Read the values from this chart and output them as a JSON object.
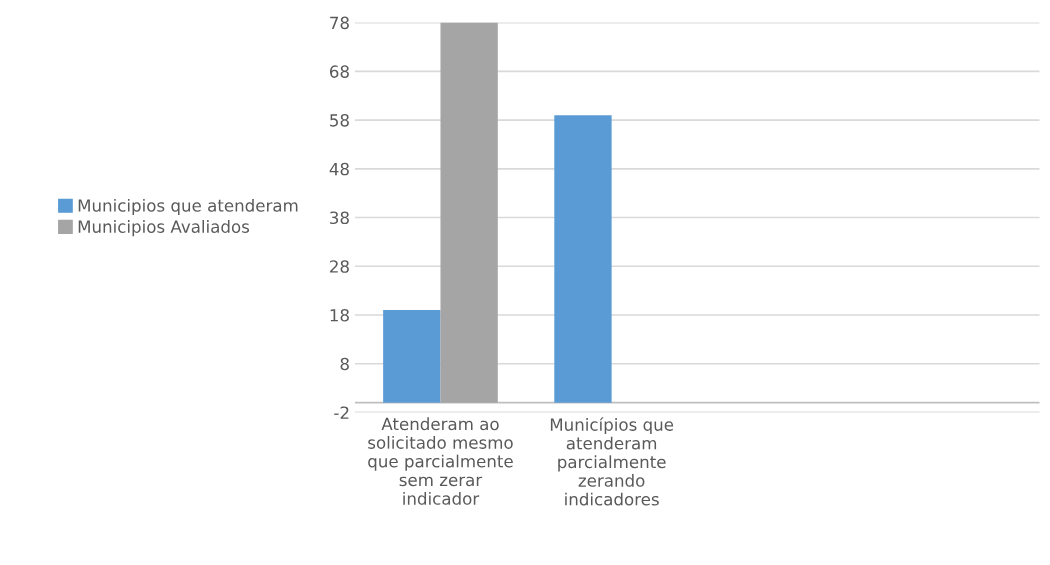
{
  "chart_data": {
    "type": "bar",
    "categories": [
      "Atenderam ao\nsolicitado mesmo\nque parcialmente\nsem zerar\nindicador",
      "Municípios que\natenderam\nparcialmente\nzerando\nindicadores",
      null,
      null
    ],
    "series": [
      {
        "name": "Municipios que atenderam",
        "color": "#5b9bd5",
        "values": [
          19,
          59,
          null,
          null
        ]
      },
      {
        "name": "Municipios Avaliados",
        "color": "#a5a5a5",
        "values": [
          78,
          0,
          null,
          null
        ]
      }
    ],
    "ylim": [
      -2,
      78
    ],
    "yticks": [
      -2,
      8,
      18,
      28,
      38,
      48,
      58,
      68,
      78
    ],
    "grid": "y",
    "legend": "left"
  }
}
